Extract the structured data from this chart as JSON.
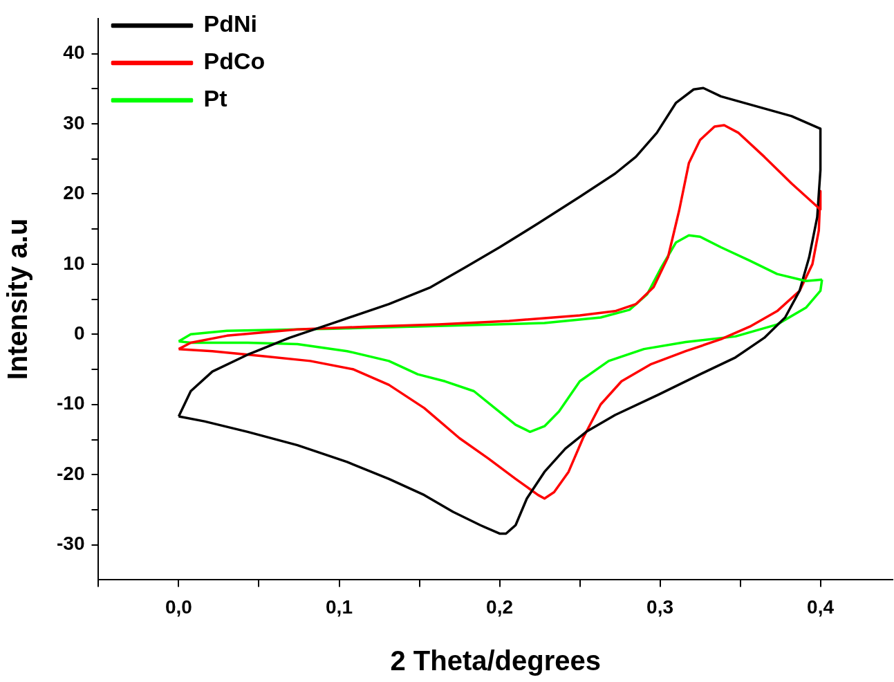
{
  "chart_data": {
    "type": "line",
    "xlabel": "2 Theta/degrees",
    "ylabel": "Intensity a.u",
    "xlim": [
      -0.05,
      0.445
    ],
    "ylim": [
      -35,
      45
    ],
    "xticks": [
      {
        "value": -0.05,
        "label": null
      },
      {
        "value": 0,
        "label": "0,0"
      },
      {
        "value": 0.05,
        "label": null
      },
      {
        "value": 0.1,
        "label": "0,1"
      },
      {
        "value": 0.15,
        "label": null
      },
      {
        "value": 0.2,
        "label": "0,2"
      },
      {
        "value": 0.25,
        "label": null
      },
      {
        "value": 0.3,
        "label": "0,3"
      },
      {
        "value": 0.35,
        "label": null
      },
      {
        "value": 0.4,
        "label": "0,4"
      }
    ],
    "yticks": [
      -30,
      {
        "value": -25,
        "label": null
      },
      -20,
      {
        "value": -15,
        "label": null
      },
      -10,
      {
        "value": -5,
        "label": null
      },
      0,
      {
        "value": 5,
        "label": null
      },
      10,
      {
        "value": 15,
        "label": null
      },
      20,
      {
        "value": 25,
        "label": null
      },
      30,
      {
        "value": 35,
        "label": null
      },
      40
    ],
    "grid": false,
    "legend": "top left",
    "marker": "none",
    "line_style": "solid",
    "series": [
      {
        "name": "PdNi",
        "color": "#000000",
        "x": [
          0,
          0.0075,
          0.021,
          0.043,
          0.069,
          0.1,
          0.131,
          0.157,
          0.179,
          0.2,
          0.224,
          0.25,
          0.272,
          0.285,
          0.298,
          0.31,
          0.321,
          0.327,
          0.338,
          0.36,
          0.382,
          0.4
        ],
        "values": [
          -11.7,
          -8.1,
          -5.3,
          -2.9,
          -0.5,
          1.9,
          4.3,
          6.7,
          9.6,
          12.4,
          15.8,
          19.6,
          22.9,
          25.3,
          28.7,
          33,
          34.9,
          35.1,
          33.9,
          32.5,
          31.1,
          29.3
        ]
      },
      {
        "name": "PdCo",
        "color": "#ff0000",
        "x": [
          0,
          0.0075,
          0.03,
          0.074,
          0.118,
          0.162,
          0.206,
          0.25,
          0.272,
          0.285,
          0.296,
          0.305,
          0.312,
          0.318,
          0.325,
          0.334,
          0.34,
          0.349,
          0.365,
          0.382,
          0.398,
          0.4
        ],
        "values": [
          -2.1,
          -1.2,
          -0.2,
          0.7,
          1.1,
          1.4,
          1.9,
          2.7,
          3.3,
          4.3,
          6.7,
          11,
          17.7,
          24.4,
          27.7,
          29.6,
          29.8,
          28.7,
          25.3,
          21.5,
          18.2,
          17.7
        ]
      },
      {
        "name": "Pt",
        "color": "#00ff00",
        "x": [
          0,
          0.0075,
          0.03,
          0.096,
          0.162,
          0.228,
          0.263,
          0.281,
          0.292,
          0.301,
          0.31,
          0.318,
          0.325,
          0.338,
          0.356,
          0.373,
          0.391,
          0.401
        ],
        "values": [
          -1,
          0,
          0.5,
          0.8,
          1.2,
          1.6,
          2.4,
          3.5,
          5.7,
          9.6,
          13.1,
          14.1,
          13.9,
          12.4,
          10.5,
          8.6,
          7.6,
          7.8
        ]
      },
      {
        "color": "#000000",
        "x": [
          0.4,
          0.4,
          0.398,
          0.393,
          0.387,
          0.378,
          0.365,
          0.347,
          0.325,
          0.299,
          0.272,
          0.254,
          0.241,
          0.228,
          0.217,
          0.21,
          0.204,
          0.2,
          0.188,
          0.171,
          0.153,
          0.131,
          0.105,
          0.074,
          0.043,
          0.016,
          0
        ],
        "values": [
          29.3,
          23.4,
          16.7,
          11,
          6.2,
          2.4,
          -0.5,
          -3.3,
          -5.7,
          -8.6,
          -11.5,
          -13.9,
          -16.3,
          -19.6,
          -23.4,
          -27.2,
          -28.4,
          -28.4,
          -27.2,
          -25.3,
          -22.9,
          -20.6,
          -18.2,
          -15.8,
          -13.9,
          -12.4,
          -11.7
        ]
      },
      {
        "color": "#ff0000",
        "x": [
          0.4,
          0.4,
          0.399,
          0.395,
          0.387,
          0.373,
          0.356,
          0.338,
          0.316,
          0.294,
          0.276,
          0.263,
          0.252,
          0.243,
          0.234,
          0.228,
          0.224,
          0.21,
          0.193,
          0.175,
          0.153,
          0.131,
          0.109,
          0.082,
          0.052,
          0.021,
          0
        ],
        "values": [
          17.7,
          20.4,
          14.8,
          10,
          6.2,
          3.3,
          1.1,
          -0.7,
          -2.4,
          -4.3,
          -6.7,
          -10,
          -14.8,
          -19.6,
          -22.5,
          -23.4,
          -22.9,
          -20.6,
          -17.7,
          -14.8,
          -10.5,
          -7.2,
          -5,
          -3.8,
          -3.1,
          -2.4,
          -2.1
        ]
      },
      {
        "color": "#00ff00",
        "x": [
          0.401,
          0.4,
          0.391,
          0.373,
          0.347,
          0.316,
          0.29,
          0.268,
          0.25,
          0.237,
          0.228,
          0.219,
          0.21,
          0.197,
          0.184,
          0.166,
          0.149,
          0.131,
          0.105,
          0.074,
          0.043,
          0.0075,
          0
        ],
        "values": [
          7.8,
          6.2,
          3.8,
          1.4,
          -0.3,
          -1.1,
          -2.1,
          -3.8,
          -6.7,
          -11,
          -13.1,
          -13.9,
          -12.9,
          -10.5,
          -8.1,
          -6.7,
          -5.7,
          -3.8,
          -2.4,
          -1.4,
          -1.2,
          -1.2,
          -1
        ]
      }
    ]
  }
}
